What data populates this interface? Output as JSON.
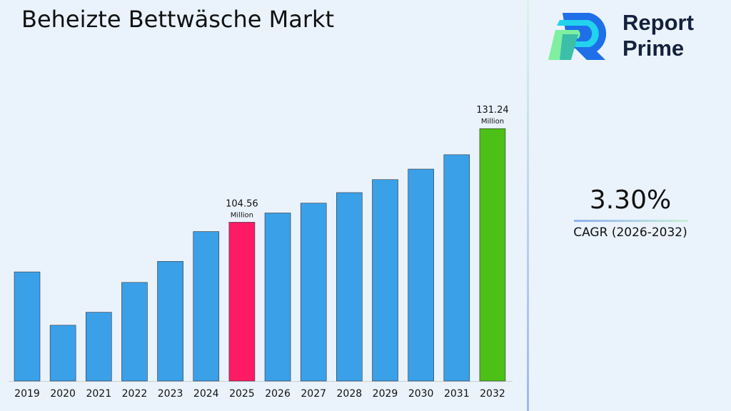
{
  "title": "Beheizte Bettwäsche Markt",
  "brand": {
    "line1": "Report",
    "line2": "Prime"
  },
  "cagr": {
    "value": "3.30%",
    "label": "CAGR (2026-2032)"
  },
  "chart_data": {
    "type": "bar",
    "title": "Beheizte Bettwäsche Markt",
    "categories": [
      "2019",
      "2020",
      "2021",
      "2022",
      "2023",
      "2024",
      "2025",
      "2026",
      "2027",
      "2028",
      "2029",
      "2030",
      "2031",
      "2032"
    ],
    "values": [
      90.4,
      75.2,
      78.9,
      87.4,
      93.4,
      101.9,
      104.56,
      107.2,
      110.0,
      113.0,
      116.7,
      119.7,
      123.8,
      131.24
    ],
    "labels": {
      "2025": {
        "value": "104.56",
        "unit": "Million"
      },
      "2032": {
        "value": "131.24",
        "unit": "Million"
      }
    },
    "colors": {
      "default": "#3aa0e8",
      "highlight": "#ff1a66",
      "final": "#4cc016"
    },
    "ylim": [
      59.3,
      150
    ],
    "grid": false
  }
}
